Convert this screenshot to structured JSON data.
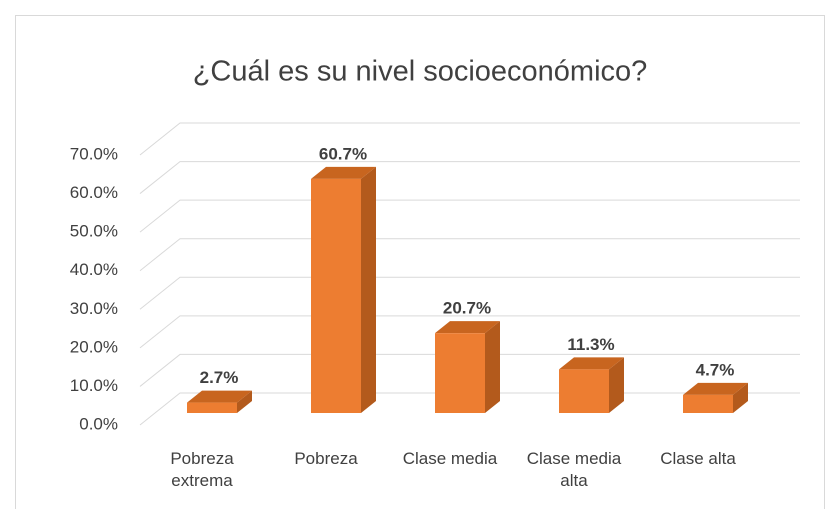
{
  "chart_data": {
    "type": "bar3d",
    "title": "¿Cuál es su nivel socioeconómico?",
    "categories": [
      "Pobreza extrema",
      "Pobreza",
      "Clase media",
      "Clase media alta",
      "Clase alta"
    ],
    "values": [
      2.7,
      60.7,
      20.7,
      11.3,
      4.7
    ],
    "value_labels": [
      "2.7%",
      "60.7%",
      "20.7%",
      "11.3%",
      "4.7%"
    ],
    "color": "#ed7d31",
    "ylim": [
      0,
      70
    ],
    "yticks": [
      {
        "value": 0,
        "label": "0.0%"
      },
      {
        "value": 10,
        "label": "10.0%"
      },
      {
        "value": 20,
        "label": "20.0%"
      },
      {
        "value": 30,
        "label": "30.0%"
      },
      {
        "value": 40,
        "label": "40.0%"
      },
      {
        "value": 50,
        "label": "50.0%"
      },
      {
        "value": 60,
        "label": "60.0%"
      },
      {
        "value": 70,
        "label": "70.0%"
      }
    ],
    "grid": true
  }
}
